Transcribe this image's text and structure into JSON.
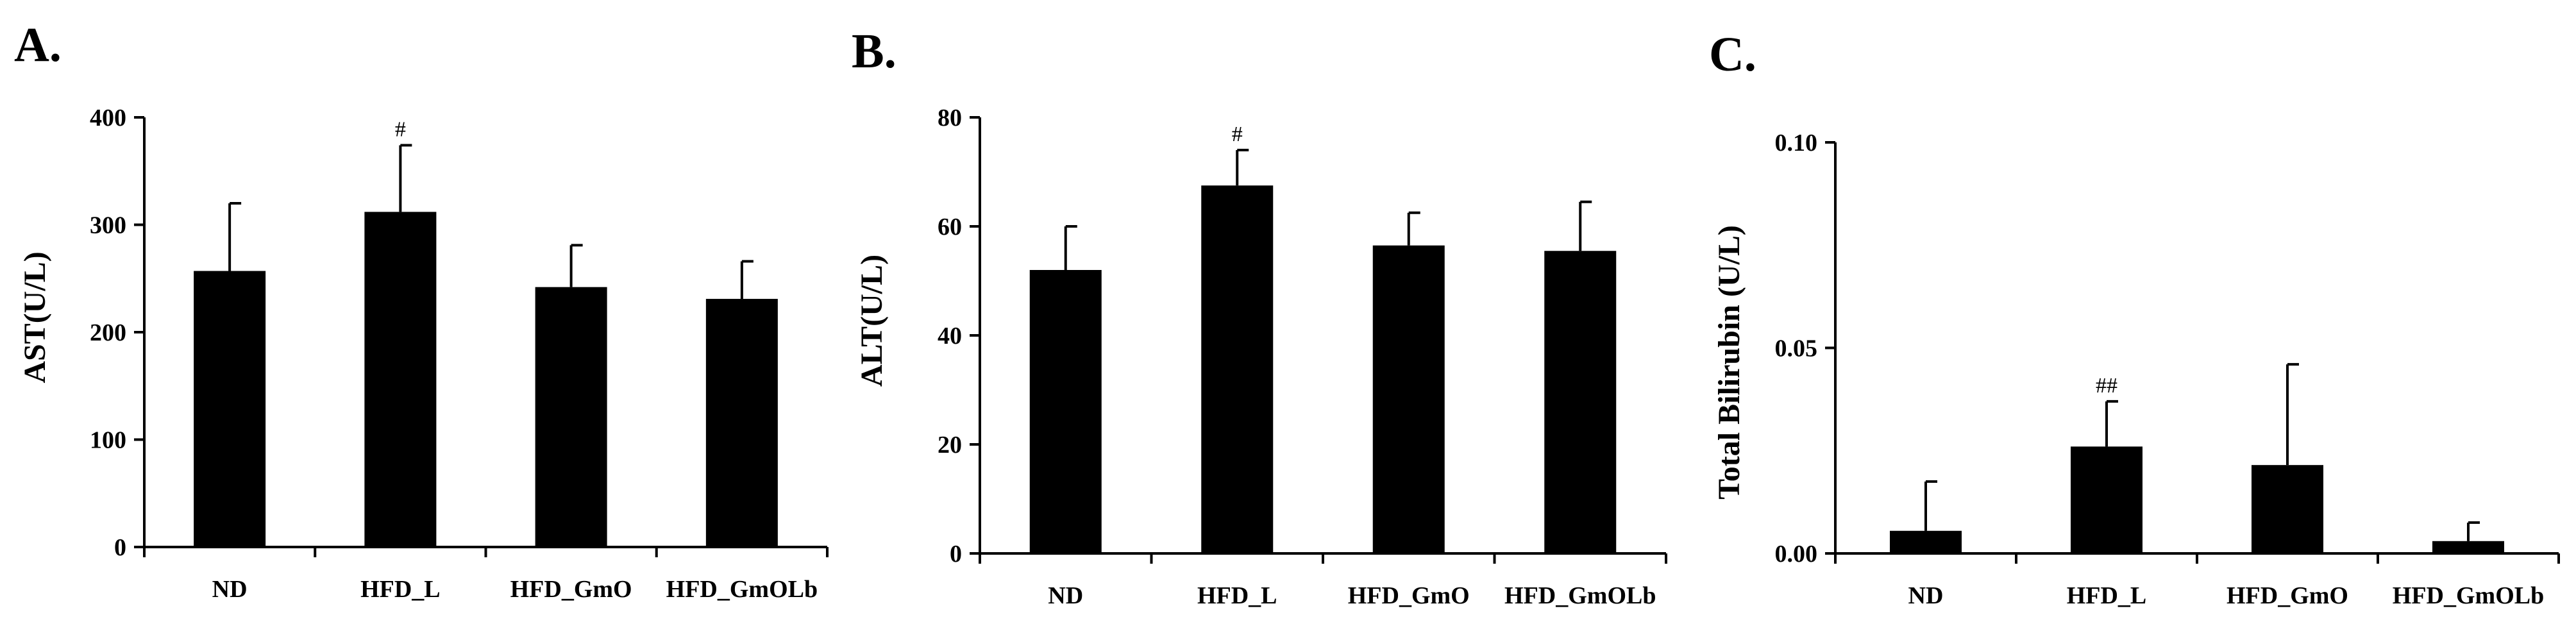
{
  "chart_data": [
    {
      "type": "bar",
      "panel_label": "A.",
      "ylabel": "AST(U/L)",
      "categories": [
        "ND",
        "HFD_L",
        "HFD_GmO",
        "HFD_GmOLb"
      ],
      "values": [
        257,
        312,
        242,
        231
      ],
      "errors": [
        63,
        62,
        39,
        35
      ],
      "significance": [
        "",
        "#",
        "",
        ""
      ],
      "ylim": [
        0,
        400
      ],
      "yticks": [
        0,
        100,
        200,
        300,
        400
      ],
      "ytick_labels": [
        "0",
        "100",
        "200",
        "300",
        "400"
      ],
      "bar_color": "#000000",
      "grid": false
    },
    {
      "type": "bar",
      "panel_label": "B.",
      "ylabel": "ALT(U/L)",
      "categories": [
        "ND",
        "HFD_L",
        "HFD_GmO",
        "HFD_GmOLb"
      ],
      "values": [
        52,
        67.5,
        56.5,
        55.5
      ],
      "errors": [
        8,
        6.5,
        6,
        9
      ],
      "significance": [
        "",
        "#",
        "",
        ""
      ],
      "ylim": [
        0,
        80
      ],
      "yticks": [
        0,
        20,
        40,
        60,
        80
      ],
      "ytick_labels": [
        "0",
        "20",
        "40",
        "60",
        "80"
      ],
      "bar_color": "#000000",
      "grid": false
    },
    {
      "type": "bar",
      "panel_label": "C.",
      "ylabel": "Total Bilirubin (U/L)",
      "categories": [
        "ND",
        "HFD_L",
        "HFD_GmO",
        "HFD_GmOLb"
      ],
      "values": [
        0.0055,
        0.026,
        0.0215,
        0.003
      ],
      "errors": [
        0.012,
        0.011,
        0.0245,
        0.0045
      ],
      "significance": [
        "",
        "##",
        "",
        ""
      ],
      "ylim": [
        0,
        0.1
      ],
      "yticks": [
        0,
        0.05,
        0.1
      ],
      "ytick_labels": [
        "0.00",
        "0.05",
        "0.10"
      ],
      "bar_color": "#000000",
      "grid": false
    }
  ]
}
